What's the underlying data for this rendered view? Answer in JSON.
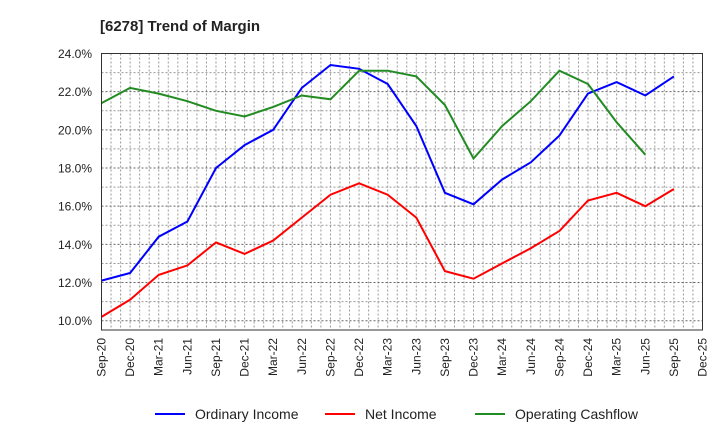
{
  "chart_data": {
    "type": "line",
    "title": "[6278]  Trend of Margin",
    "xlabel": "",
    "ylabel": "",
    "ylim": [
      9.5,
      24
    ],
    "yticks": [
      10,
      12,
      14,
      16,
      18,
      20,
      22,
      24
    ],
    "ytick_labels": [
      "10.0%",
      "12.0%",
      "14.0%",
      "16.0%",
      "18.0%",
      "20.0%",
      "22.0%",
      "24.0%"
    ],
    "categories": [
      "Sep-20",
      "Dec-20",
      "Mar-21",
      "Jun-21",
      "Sep-21",
      "Dec-21",
      "Mar-22",
      "Jun-22",
      "Sep-22",
      "Dec-22",
      "Mar-23",
      "Jun-23",
      "Sep-23",
      "Dec-23",
      "Mar-24",
      "Jun-24",
      "Sep-24",
      "Dec-24",
      "Mar-25",
      "Jun-25",
      "Sep-25",
      "Dec-25"
    ],
    "grid": true,
    "legend_position": "bottom",
    "series": [
      {
        "name": "Ordinary Income",
        "color": "#0000ff",
        "values": [
          12.1,
          12.5,
          14.4,
          15.2,
          18.0,
          19.2,
          20.0,
          22.2,
          23.4,
          23.2,
          22.4,
          20.2,
          16.7,
          16.1,
          17.4,
          18.3,
          19.7,
          21.9,
          22.5,
          21.8,
          22.8,
          null
        ]
      },
      {
        "name": "Net Income",
        "color": "#ff0000",
        "values": [
          10.2,
          11.1,
          12.4,
          12.9,
          14.1,
          13.5,
          14.2,
          15.4,
          16.6,
          17.2,
          16.6,
          15.4,
          12.6,
          12.2,
          13.0,
          13.8,
          14.7,
          16.3,
          16.7,
          16.0,
          16.9,
          null
        ]
      },
      {
        "name": "Operating Cashflow",
        "color": "#228b22",
        "values": [
          21.4,
          22.2,
          21.9,
          21.5,
          21.0,
          20.7,
          21.2,
          21.8,
          21.6,
          23.1,
          23.1,
          22.8,
          21.3,
          18.5,
          20.2,
          21.5,
          23.1,
          22.4,
          20.4,
          18.7,
          null,
          null
        ]
      }
    ]
  }
}
